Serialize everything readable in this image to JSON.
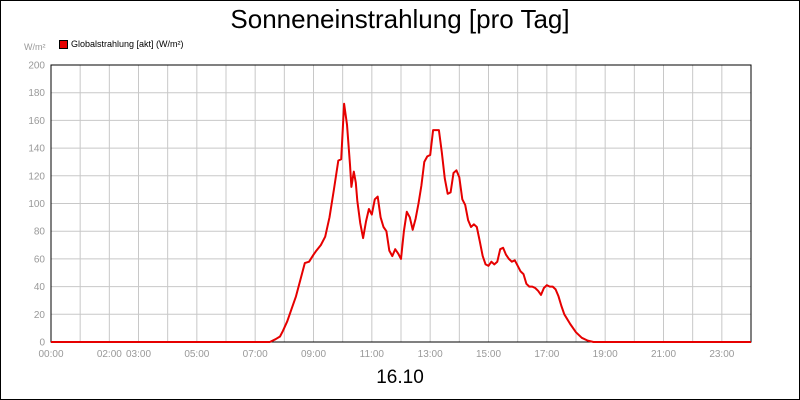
{
  "chart_data": {
    "type": "line",
    "title": "Sonneneinstrahlung [pro Tag]",
    "ylabel": "W/m²",
    "xlabel": "16.10",
    "ylim": [
      0,
      200
    ],
    "xlim": [
      0,
      24
    ],
    "y_ticks": [
      0,
      20,
      40,
      60,
      80,
      100,
      120,
      140,
      160,
      180,
      200
    ],
    "x_ticks": [
      {
        "h": 0,
        "label": "00:00"
      },
      {
        "h": 2,
        "label": "02:00"
      },
      {
        "h": 3,
        "label": "03:00"
      },
      {
        "h": 5,
        "label": "05:00"
      },
      {
        "h": 7,
        "label": "07:00"
      },
      {
        "h": 9,
        "label": "09:00"
      },
      {
        "h": 11,
        "label": "11:00"
      },
      {
        "h": 13,
        "label": "13:00"
      },
      {
        "h": 15,
        "label": "15:00"
      },
      {
        "h": 17,
        "label": "17:00"
      },
      {
        "h": 19,
        "label": "19:00"
      },
      {
        "h": 21,
        "label": "21:00"
      },
      {
        "h": 23,
        "label": "23:00"
      }
    ],
    "grid": true,
    "legend_position": "top-left",
    "series": [
      {
        "name": "Globalstrahlung [akt] (W/m²)",
        "color": "#e60000",
        "points": [
          [
            0,
            0
          ],
          [
            7.5,
            0
          ],
          [
            7.7,
            2
          ],
          [
            7.85,
            4
          ],
          [
            7.95,
            8
          ],
          [
            8.1,
            15
          ],
          [
            8.25,
            24
          ],
          [
            8.4,
            33
          ],
          [
            8.55,
            45
          ],
          [
            8.7,
            57
          ],
          [
            8.85,
            58
          ],
          [
            9.0,
            63
          ],
          [
            9.1,
            66
          ],
          [
            9.25,
            70
          ],
          [
            9.4,
            76
          ],
          [
            9.55,
            90
          ],
          [
            9.7,
            110
          ],
          [
            9.85,
            131
          ],
          [
            9.95,
            132
          ],
          [
            10.05,
            172
          ],
          [
            10.15,
            157
          ],
          [
            10.25,
            128
          ],
          [
            10.3,
            112
          ],
          [
            10.38,
            123
          ],
          [
            10.45,
            115
          ],
          [
            10.5,
            102
          ],
          [
            10.6,
            86
          ],
          [
            10.7,
            75
          ],
          [
            10.8,
            87
          ],
          [
            10.9,
            96
          ],
          [
            11.0,
            92
          ],
          [
            11.1,
            103
          ],
          [
            11.2,
            105
          ],
          [
            11.3,
            90
          ],
          [
            11.4,
            83
          ],
          [
            11.5,
            80
          ],
          [
            11.6,
            66
          ],
          [
            11.7,
            62
          ],
          [
            11.8,
            67
          ],
          [
            11.9,
            64
          ],
          [
            12.0,
            60
          ],
          [
            12.1,
            80
          ],
          [
            12.2,
            94
          ],
          [
            12.3,
            90
          ],
          [
            12.4,
            81
          ],
          [
            12.5,
            89
          ],
          [
            12.6,
            100
          ],
          [
            12.7,
            113
          ],
          [
            12.8,
            130
          ],
          [
            12.9,
            134
          ],
          [
            13.0,
            135
          ],
          [
            13.1,
            153
          ],
          [
            13.2,
            153
          ],
          [
            13.3,
            153
          ],
          [
            13.4,
            137
          ],
          [
            13.5,
            118
          ],
          [
            13.6,
            107
          ],
          [
            13.7,
            108
          ],
          [
            13.8,
            122
          ],
          [
            13.9,
            124
          ],
          [
            14.0,
            119
          ],
          [
            14.1,
            103
          ],
          [
            14.2,
            99
          ],
          [
            14.3,
            88
          ],
          [
            14.4,
            83
          ],
          [
            14.5,
            85
          ],
          [
            14.6,
            83
          ],
          [
            14.7,
            73
          ],
          [
            14.8,
            62
          ],
          [
            14.9,
            56
          ],
          [
            15.0,
            55
          ],
          [
            15.1,
            58
          ],
          [
            15.2,
            56
          ],
          [
            15.3,
            58
          ],
          [
            15.4,
            67
          ],
          [
            15.5,
            68
          ],
          [
            15.6,
            63
          ],
          [
            15.7,
            60
          ],
          [
            15.8,
            58
          ],
          [
            15.9,
            59
          ],
          [
            16.0,
            55
          ],
          [
            16.1,
            51
          ],
          [
            16.2,
            49
          ],
          [
            16.3,
            42
          ],
          [
            16.4,
            40
          ],
          [
            16.5,
            40
          ],
          [
            16.6,
            39
          ],
          [
            16.7,
            37
          ],
          [
            16.8,
            34
          ],
          [
            16.9,
            39
          ],
          [
            17.0,
            41
          ],
          [
            17.1,
            40
          ],
          [
            17.2,
            40
          ],
          [
            17.3,
            38
          ],
          [
            17.4,
            33
          ],
          [
            17.5,
            26
          ],
          [
            17.6,
            20
          ],
          [
            17.8,
            13
          ],
          [
            18.0,
            7
          ],
          [
            18.2,
            3
          ],
          [
            18.4,
            1
          ],
          [
            18.6,
            0
          ],
          [
            24,
            0
          ]
        ]
      }
    ]
  }
}
